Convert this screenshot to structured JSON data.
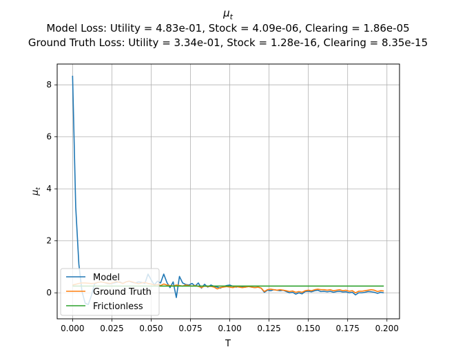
{
  "chart_data": {
    "type": "line",
    "title_lines": [
      "μ",
      "Model Loss: Utility = 4.83e-01, Stock = 4.09e-06, Clearing = 1.86e-05",
      "Ground Truth Loss: Utility = 3.34e-01, Stock = 1.28e-16, Clearing = 8.35e-15"
    ],
    "title_subscript": "t",
    "xlabel": "T",
    "ylabel": "μ",
    "ylabel_subscript": "t",
    "xlim": [
      -0.0098,
      0.208
    ],
    "ylim": [
      -1.0,
      8.8
    ],
    "xticks": [
      0.0,
      0.025,
      0.05,
      0.075,
      0.1,
      0.125,
      0.15,
      0.175,
      0.2
    ],
    "xtick_labels": [
      "0.000",
      "0.025",
      "0.050",
      "0.075",
      "0.100",
      "0.125",
      "0.150",
      "0.175",
      "0.200"
    ],
    "yticks": [
      0,
      2,
      4,
      6,
      8
    ],
    "ytick_labels": [
      "0",
      "2",
      "4",
      "6",
      "8"
    ],
    "grid": true,
    "legend_position": "lower-left",
    "x": [
      0.0,
      0.002,
      0.004,
      0.006,
      0.008,
      0.01,
      0.012,
      0.014,
      0.016,
      0.018,
      0.02,
      0.022,
      0.024,
      0.026,
      0.028,
      0.03,
      0.032,
      0.034,
      0.036,
      0.038,
      0.04,
      0.042,
      0.044,
      0.046,
      0.048,
      0.05,
      0.052,
      0.054,
      0.056,
      0.058,
      0.06,
      0.062,
      0.064,
      0.066,
      0.068,
      0.07,
      0.072,
      0.074,
      0.076,
      0.078,
      0.08,
      0.082,
      0.084,
      0.086,
      0.088,
      0.09,
      0.092,
      0.094,
      0.096,
      0.098,
      0.1,
      0.102,
      0.104,
      0.106,
      0.108,
      0.11,
      0.112,
      0.114,
      0.116,
      0.118,
      0.12,
      0.122,
      0.124,
      0.126,
      0.128,
      0.13,
      0.132,
      0.134,
      0.136,
      0.138,
      0.14,
      0.142,
      0.144,
      0.146,
      0.148,
      0.15,
      0.152,
      0.154,
      0.156,
      0.158,
      0.16,
      0.162,
      0.164,
      0.166,
      0.168,
      0.17,
      0.172,
      0.174,
      0.176,
      0.178,
      0.18,
      0.182,
      0.184,
      0.186,
      0.188,
      0.19,
      0.192,
      0.194,
      0.196,
      0.198
    ],
    "series": [
      {
        "name": "Model",
        "color": "#1f77b4",
        "values": [
          8.35,
          3.3,
          1.1,
          0.05,
          -0.4,
          -0.45,
          -0.1,
          0.35,
          0.4,
          0.42,
          0.4,
          0.36,
          0.35,
          0.38,
          0.4,
          0.42,
          0.36,
          0.42,
          0.45,
          0.4,
          0.38,
          0.42,
          0.4,
          0.36,
          0.72,
          0.5,
          0.3,
          0.45,
          0.38,
          0.72,
          0.4,
          0.2,
          0.42,
          -0.18,
          0.63,
          0.38,
          0.32,
          0.3,
          0.36,
          0.26,
          0.38,
          0.18,
          0.33,
          0.22,
          0.3,
          0.25,
          0.22,
          0.18,
          0.24,
          0.28,
          0.3,
          0.25,
          0.22,
          0.25,
          0.24,
          0.22,
          0.25,
          0.22,
          0.2,
          0.22,
          0.18,
          0.02,
          0.1,
          0.08,
          0.12,
          0.1,
          0.08,
          0.1,
          0.05,
          0.0,
          0.02,
          -0.05,
          0.0,
          -0.04,
          0.05,
          0.06,
          0.04,
          0.08,
          0.1,
          0.05,
          0.06,
          0.04,
          0.06,
          0.02,
          0.05,
          0.06,
          0.03,
          0.04,
          0.0,
          0.02,
          -0.08,
          0.0,
          0.0,
          0.02,
          0.05,
          0.04,
          0.02,
          -0.02,
          0.02,
          0.0
        ]
      },
      {
        "name": "Ground Truth",
        "color": "#ff7f0e",
        "values": [
          0.3,
          0.33,
          0.36,
          0.38,
          0.38,
          0.37,
          0.36,
          0.37,
          0.4,
          0.42,
          0.4,
          0.38,
          0.36,
          0.4,
          0.43,
          0.4,
          0.36,
          0.42,
          0.45,
          0.42,
          0.38,
          0.35,
          0.38,
          0.4,
          0.36,
          0.34,
          0.3,
          0.32,
          0.28,
          0.34,
          0.3,
          0.28,
          0.26,
          0.3,
          0.28,
          0.26,
          0.3,
          0.28,
          0.26,
          0.28,
          0.25,
          0.2,
          0.26,
          0.24,
          0.25,
          0.22,
          0.15,
          0.2,
          0.22,
          0.24,
          0.22,
          0.2,
          0.24,
          0.22,
          0.2,
          0.22,
          0.24,
          0.22,
          0.2,
          0.22,
          0.18,
          0.05,
          0.12,
          0.14,
          0.12,
          0.1,
          0.12,
          0.1,
          0.08,
          0.05,
          0.07,
          0.02,
          0.05,
          0.02,
          0.08,
          0.1,
          0.08,
          0.12,
          0.14,
          0.12,
          0.12,
          0.1,
          0.12,
          0.08,
          0.1,
          0.12,
          0.08,
          0.1,
          0.06,
          0.08,
          0.0,
          0.06,
          0.06,
          0.08,
          0.1,
          0.12,
          0.1,
          0.05,
          0.08,
          0.07
        ]
      },
      {
        "name": "Frictionless",
        "color": "#2ca02c",
        "values": [
          0.26,
          0.26,
          0.26,
          0.26,
          0.26,
          0.26,
          0.26,
          0.26,
          0.26,
          0.26,
          0.26,
          0.26,
          0.26,
          0.26,
          0.26,
          0.26,
          0.26,
          0.26,
          0.26,
          0.26,
          0.26,
          0.26,
          0.26,
          0.26,
          0.26,
          0.26,
          0.26,
          0.26,
          0.26,
          0.26,
          0.26,
          0.26,
          0.26,
          0.26,
          0.26,
          0.26,
          0.26,
          0.26,
          0.26,
          0.26,
          0.26,
          0.26,
          0.26,
          0.26,
          0.26,
          0.26,
          0.26,
          0.26,
          0.26,
          0.26,
          0.26,
          0.26,
          0.26,
          0.26,
          0.26,
          0.26,
          0.26,
          0.26,
          0.26,
          0.26,
          0.26,
          0.26,
          0.26,
          0.26,
          0.26,
          0.26,
          0.26,
          0.26,
          0.26,
          0.26,
          0.26,
          0.26,
          0.26,
          0.26,
          0.26,
          0.26,
          0.26,
          0.26,
          0.26,
          0.26,
          0.26,
          0.26,
          0.26,
          0.26,
          0.26,
          0.26,
          0.26,
          0.26,
          0.26,
          0.26,
          0.26,
          0.26,
          0.26,
          0.26,
          0.26,
          0.26,
          0.26,
          0.26,
          0.26,
          0.26
        ]
      }
    ]
  }
}
